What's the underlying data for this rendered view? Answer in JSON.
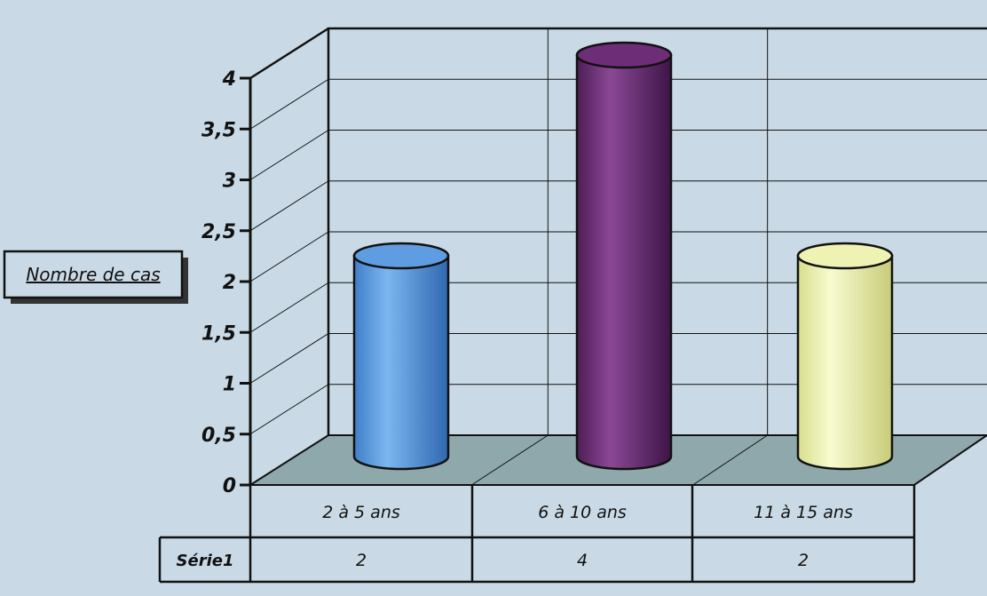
{
  "chart_data": {
    "type": "bar",
    "categories": [
      "2 à 5 ans",
      "6 à 10 ans",
      "11 à 15 ans"
    ],
    "series": [
      {
        "name": "Série1",
        "values": [
          2,
          4,
          2
        ]
      }
    ],
    "ylabel": "Nombre de cas",
    "ylim": [
      0,
      4
    ],
    "yticks": [
      0,
      0.5,
      1,
      1.5,
      2,
      2.5,
      3,
      3.5,
      4
    ],
    "ytick_labels": [
      "0",
      "0,5",
      "1",
      "1,5",
      "2",
      "2,5",
      "3",
      "3,5",
      "4"
    ],
    "data_table": {
      "row_label": "Série1",
      "values": [
        "2",
        "4",
        "2"
      ]
    },
    "bar_style": "3d-cylinder",
    "grid": true,
    "colors": {
      "background": "#c9dae6",
      "floor": "#8fa8ac",
      "bars": [
        "#5f9de2",
        "#6e2d77",
        "#eef2b2"
      ],
      "grid": "#111111"
    }
  }
}
